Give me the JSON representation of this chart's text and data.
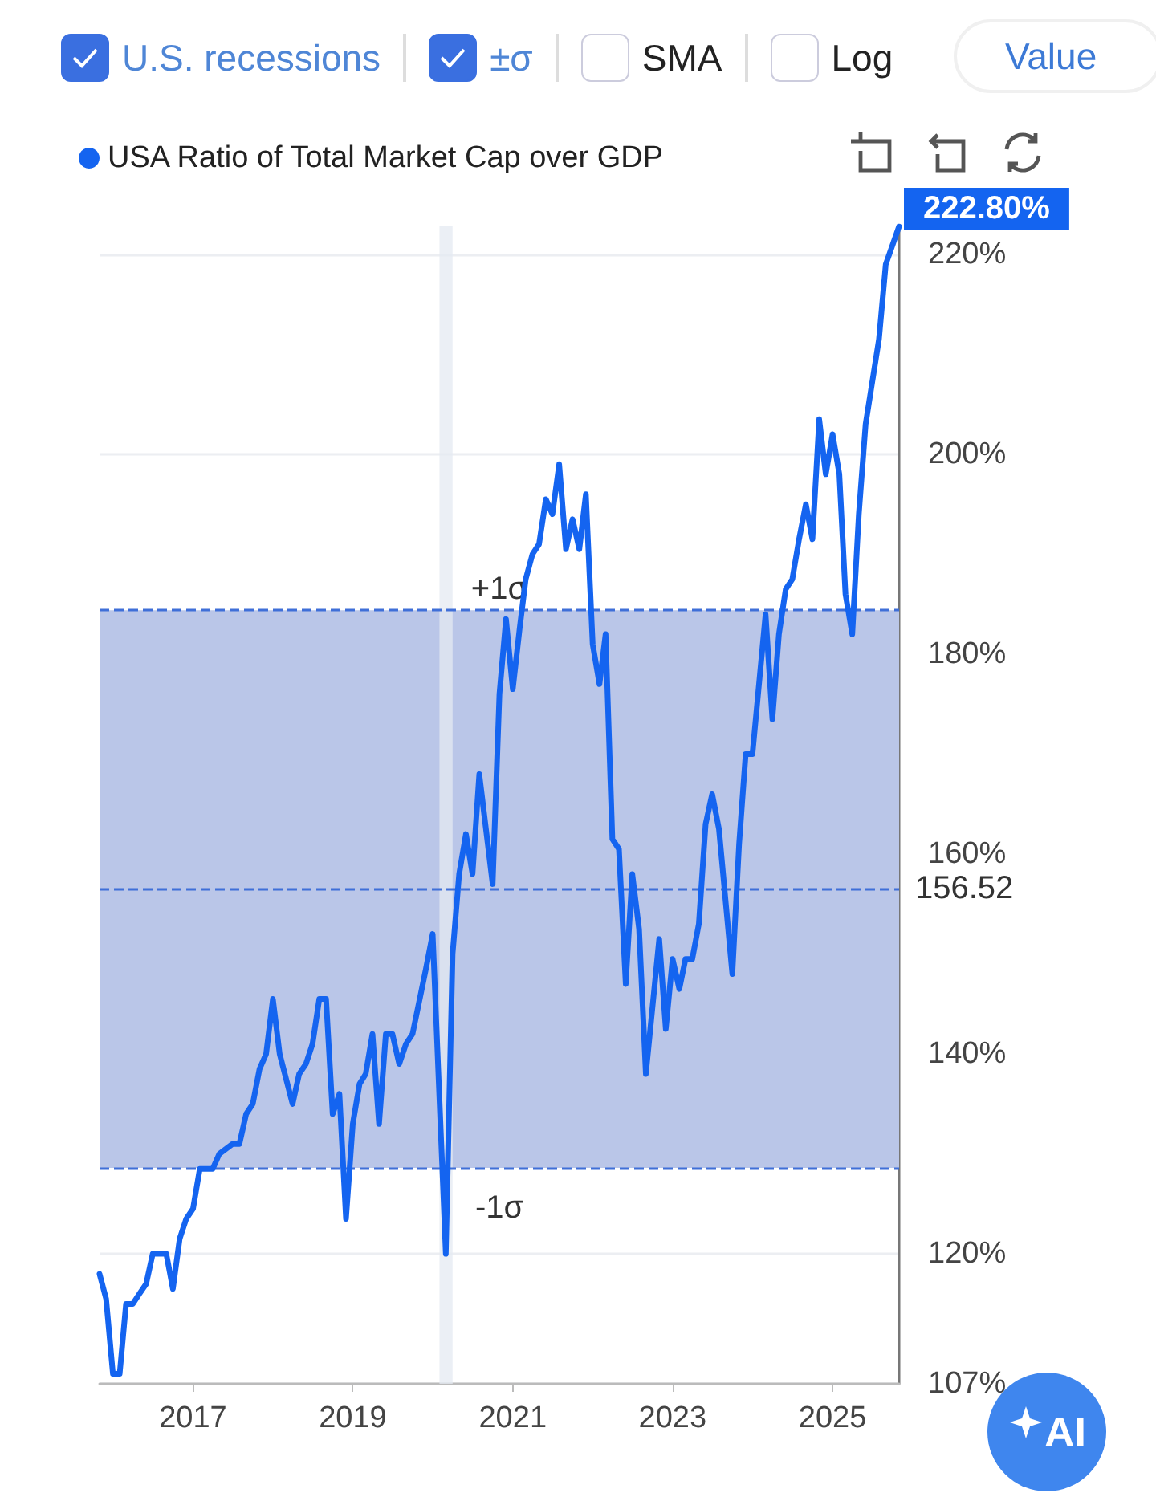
{
  "chart_data": {
    "type": "line",
    "legend": "top left",
    "grid": "y",
    "marker": "none",
    "line_style": "solid",
    "annotations": [
      "U.S. recessions",
      "±σ",
      "SMA",
      "Log",
      "Value",
      "AI"
    ],
    "xlim": [
      "2015-11",
      "2025-11"
    ],
    "xticks": [
      "2017",
      "2019",
      "2021",
      "2023",
      "2025"
    ],
    "ylim": [
      107,
      222.8
    ],
    "yticks": [
      {
        "value": 107,
        "label": "107%"
      },
      {
        "value": 120,
        "label": "120%"
      },
      {
        "value": 140,
        "label": "140%"
      },
      {
        "value": 160,
        "label": "160%"
      },
      {
        "value": 180,
        "label": "180%"
      },
      {
        "value": 200,
        "label": "200%"
      },
      {
        "value": 220,
        "label": "220%"
      }
    ],
    "ref_lines": [
      {
        "axis": "y",
        "value": 184.4,
        "label": "+1σ",
        "color": "#3f6fd8",
        "line_style": "dashed"
      },
      {
        "axis": "y",
        "value": 156.52,
        "label": "156.52",
        "color": "#3f6fd8",
        "line_style": "dashed"
      },
      {
        "axis": "y",
        "value": 128.6,
        "label": "-1σ",
        "color": "#3f6fd8",
        "line_style": "dashed"
      }
    ],
    "bands": [
      {
        "axis": "y",
        "from": 128.6,
        "to": 184.4,
        "color": "#bac6e8"
      },
      {
        "axis": "x",
        "from": "2020-02",
        "to": "2020-04",
        "color": "#e4e9f1"
      }
    ],
    "x": [
      "2015-11",
      "2015-12",
      "2016-01",
      "2016-02",
      "2016-03",
      "2016-04",
      "2016-05",
      "2016-06",
      "2016-07",
      "2016-09",
      "2016-10",
      "2016-11",
      "2016-12",
      "2017-01",
      "2017-02",
      "2017-04",
      "2017-05",
      "2017-07",
      "2017-08",
      "2017-09",
      "2017-10",
      "2017-11",
      "2017-12",
      "2018-01",
      "2018-02",
      "2018-04",
      "2018-05",
      "2018-06",
      "2018-07",
      "2018-08",
      "2018-09",
      "2018-10",
      "2018-11",
      "2018-12",
      "2019-01",
      "2019-02",
      "2019-03",
      "2019-04",
      "2019-05",
      "2019-06",
      "2019-07",
      "2019-08",
      "2019-09",
      "2019-10",
      "2019-12",
      "2020-01",
      "2020-03",
      "2020-04",
      "2020-05",
      "2020-06",
      "2020-07",
      "2020-08",
      "2020-10",
      "2020-11",
      "2020-12",
      "2021-01",
      "2021-02",
      "2021-03",
      "2021-04",
      "2021-05",
      "2021-06",
      "2021-07",
      "2021-08",
      "2021-09",
      "2021-10",
      "2021-11",
      "2021-12",
      "2022-01",
      "2022-02",
      "2022-03",
      "2022-04",
      "2022-05",
      "2022-06",
      "2022-07",
      "2022-08",
      "2022-09",
      "2022-11",
      "2022-12",
      "2023-01",
      "2023-02",
      "2023-03",
      "2023-04",
      "2023-05",
      "2023-06",
      "2023-07",
      "2023-08",
      "2023-10",
      "2023-11",
      "2023-12",
      "2024-01",
      "2024-03",
      "2024-04",
      "2024-05",
      "2024-06",
      "2024-07",
      "2024-08",
      "2024-09",
      "2024-10",
      "2024-11",
      "2024-12",
      "2025-01",
      "2025-02",
      "2025-03",
      "2025-04",
      "2025-05",
      "2025-06",
      "2025-08",
      "2025-09",
      "2025-11"
    ],
    "series": [
      {
        "name": "USA Ratio of Total Market Cap over GDP",
        "color": "#1464f0",
        "values": [
          118,
          115.5,
          108,
          108,
          115,
          115,
          116,
          117,
          120,
          120,
          116.5,
          121.5,
          123.5,
          124.5,
          128.5,
          128.5,
          130,
          131,
          131,
          134,
          135,
          138.5,
          140,
          145.5,
          140,
          135,
          138,
          139,
          141,
          145.5,
          145.5,
          134,
          136,
          123.5,
          133,
          137,
          138,
          142,
          133,
          142,
          142,
          139,
          141,
          142,
          148.5,
          152,
          120,
          150,
          158,
          162,
          158,
          168,
          157,
          176,
          183.5,
          176.5,
          182.5,
          187.5,
          190,
          191,
          195.5,
          194,
          199,
          190.5,
          193.5,
          190.5,
          196,
          181,
          177,
          182,
          161.5,
          160.5,
          147,
          158,
          152.5,
          138,
          151.5,
          142.5,
          149.5,
          146.5,
          149.5,
          149.5,
          153,
          163,
          166,
          162.5,
          148,
          161,
          170,
          170,
          184,
          173.5,
          182,
          186.5,
          187.5,
          191.5,
          195,
          191.5,
          203.5,
          198,
          202,
          198,
          186,
          182,
          194,
          203,
          211.5,
          219,
          222.8
        ],
        "value_labels": [
          null,
          null,
          null,
          null,
          null,
          null,
          null,
          null,
          null,
          null,
          null,
          null,
          null,
          null,
          null,
          null,
          null,
          null,
          null,
          null,
          null,
          null,
          null,
          null,
          null,
          null,
          null,
          null,
          null,
          null,
          null,
          null,
          null,
          null,
          null,
          null,
          null,
          null,
          null,
          null,
          null,
          null,
          null,
          null,
          null,
          null,
          null,
          null,
          null,
          null,
          null,
          null,
          null,
          null,
          null,
          null,
          null,
          null,
          null,
          null,
          null,
          null,
          null,
          null,
          null,
          null,
          null,
          null,
          null,
          null,
          null,
          null,
          null,
          null,
          null,
          null,
          null,
          null,
          null,
          null,
          null,
          null,
          null,
          null,
          null,
          null,
          null,
          null,
          null,
          null,
          null,
          null,
          null,
          null,
          null,
          null,
          null,
          null,
          null,
          null,
          null,
          null,
          null,
          null,
          null,
          null,
          null,
          null,
          "222.80%"
        ]
      }
    ]
  }
}
